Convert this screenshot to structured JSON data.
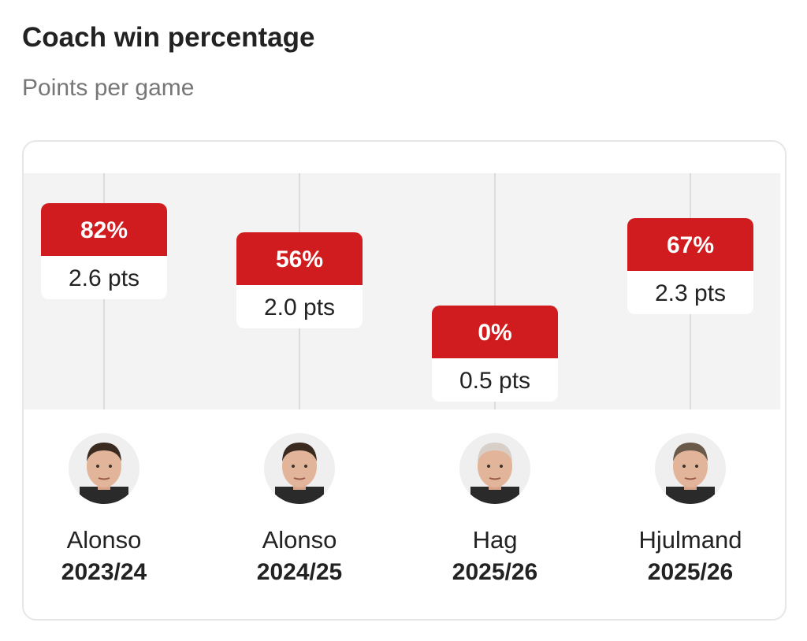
{
  "header": {
    "title": "Coach win percentage",
    "subtitle": "Points per game"
  },
  "chart_data": {
    "type": "table",
    "title": "Coach win percentage",
    "subtitle": "Points per game",
    "categories": [
      "Alonso 2023/24",
      "Alonso 2024/25",
      "Hag 2025/26",
      "Hjulmand 2025/26"
    ],
    "series": [
      {
        "name": "Win percentage",
        "values": [
          82,
          56,
          0,
          67
        ]
      },
      {
        "name": "Points per game",
        "values": [
          2.6,
          2.0,
          0.5,
          2.3
        ]
      }
    ],
    "items": [
      {
        "pct": "82%",
        "pts": "2.6 pts",
        "ppg": 2.6,
        "name": "Alonso",
        "season": "2023/24",
        "avatar": "coach-photo-alonso"
      },
      {
        "pct": "56%",
        "pts": "2.0 pts",
        "ppg": 2.0,
        "name": "Alonso",
        "season": "2024/25",
        "avatar": "coach-photo-alonso"
      },
      {
        "pct": "0%",
        "pts": "0.5 pts",
        "ppg": 0.5,
        "name": "Hag",
        "season": "2025/26",
        "avatar": "coach-photo-hag"
      },
      {
        "pct": "67%",
        "pts": "2.3 pts",
        "ppg": 2.3,
        "name": "Hjulmand",
        "season": "2025/26",
        "avatar": "coach-photo-hjulmand"
      }
    ],
    "colors": {
      "accent": "#d01c1f",
      "plot_bg": "#f3f3f3"
    }
  }
}
